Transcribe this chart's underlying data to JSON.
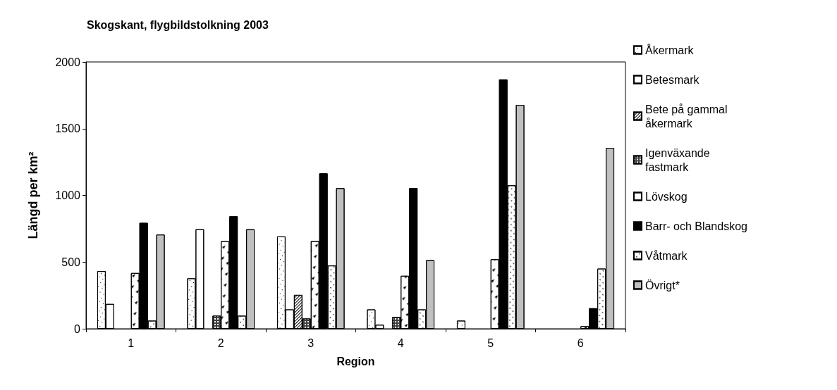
{
  "chart_data": {
    "type": "bar",
    "title": "Skogskant, flygbildstolkning 2003",
    "xlabel": "Region",
    "ylabel": "Längd per km²",
    "categories": [
      "1",
      "2",
      "3",
      "4",
      "5",
      "6"
    ],
    "series": [
      {
        "name": "Åkermark",
        "color": "#ffffff",
        "values": [
          432,
          378,
          692,
          145,
          61,
          0
        ]
      },
      {
        "name": "Betesmark",
        "color": "#ffffff",
        "values": [
          186,
          746,
          145,
          30,
          0,
          0
        ]
      },
      {
        "name": "Bete på gammal åkermark",
        "color": "#ffffff",
        "values": [
          0,
          0,
          254,
          0,
          0,
          0
        ]
      },
      {
        "name": "Igenväxande fastmark",
        "color": "#404040",
        "values": [
          0,
          98,
          77,
          89,
          0,
          0
        ]
      },
      {
        "name": "Lövskog",
        "color": "#ffffff",
        "values": [
          418,
          657,
          657,
          397,
          521,
          19
        ]
      },
      {
        "name": "Barr- och Blandskog",
        "color": "#000000",
        "values": [
          794,
          843,
          1165,
          1054,
          1869,
          154
        ]
      },
      {
        "name": "Våtmark",
        "color": "#ffffff",
        "values": [
          61,
          98,
          474,
          145,
          1075,
          451
        ]
      },
      {
        "name": "Övrigt*",
        "color": "#c0c0c0",
        "values": [
          706,
          746,
          1054,
          514,
          1678,
          1356
        ]
      }
    ],
    "ylim": [
      0,
      2000
    ],
    "yticks": [
      0,
      500,
      1000,
      1500,
      2000
    ],
    "grid": false,
    "legend": "right"
  }
}
